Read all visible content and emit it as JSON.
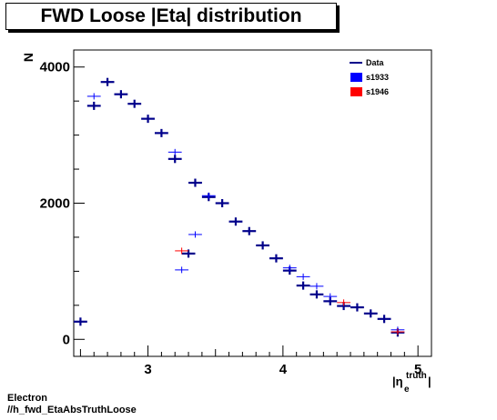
{
  "chart_data": {
    "type": "scatter",
    "title": "FWD Loose |Eta| distribution",
    "ylabel": "N",
    "xlabel_main": "|η",
    "xlabel_sup": "truth",
    "xlabel_sub": "e",
    "xlabel_close": "|",
    "xlim": [
      2.45,
      5.1
    ],
    "ylim": [
      -250,
      4250
    ],
    "xticks": [
      {
        "v": 3,
        "label": "3"
      },
      {
        "v": 4,
        "label": "4"
      },
      {
        "v": 5,
        "label": "5"
      }
    ],
    "yticks": [
      {
        "v": 0,
        "label": "0"
      },
      {
        "v": 2000,
        "label": "2000"
      },
      {
        "v": 4000,
        "label": "4000"
      }
    ],
    "legend": [
      {
        "name": "Data",
        "color": "#00008b",
        "kind": "line"
      },
      {
        "name": "s1933",
        "color": "#0000ff",
        "kind": "box"
      },
      {
        "name": "s1946",
        "color": "#ff0000",
        "kind": "box"
      }
    ],
    "series": [
      {
        "name": "Data",
        "color": "#00008b",
        "width": 2.2,
        "points": [
          [
            2.5,
            260,
            0.05
          ],
          [
            2.6,
            3430,
            0.05
          ],
          [
            2.7,
            3780,
            0.05
          ],
          [
            2.8,
            3600,
            0.05
          ],
          [
            2.9,
            3460,
            0.05
          ],
          [
            3.0,
            3240,
            0.05
          ],
          [
            3.1,
            3030,
            0.05
          ],
          [
            3.2,
            2650,
            0.05
          ],
          [
            3.3,
            1260,
            0.05
          ],
          [
            3.35,
            2300,
            0.05
          ],
          [
            3.45,
            2090,
            0.05
          ],
          [
            3.55,
            2000,
            0.05
          ],
          [
            3.65,
            1730,
            0.05
          ],
          [
            3.75,
            1590,
            0.05
          ],
          [
            3.85,
            1380,
            0.05
          ],
          [
            3.95,
            1190,
            0.05
          ],
          [
            4.05,
            1010,
            0.05
          ],
          [
            4.15,
            790,
            0.05
          ],
          [
            4.25,
            660,
            0.05
          ],
          [
            4.35,
            560,
            0.05
          ],
          [
            4.45,
            490,
            0.05
          ],
          [
            4.55,
            470,
            0.05
          ],
          [
            4.65,
            380,
            0.05
          ],
          [
            4.75,
            300,
            0.05
          ],
          [
            4.85,
            100,
            0.05
          ]
        ]
      },
      {
        "name": "s1933",
        "color": "#0000ff",
        "width": 1,
        "points": [
          [
            2.6,
            3570,
            0.05
          ],
          [
            3.2,
            2750,
            0.05
          ],
          [
            3.25,
            1020,
            0.05
          ],
          [
            3.35,
            1540,
            0.05
          ],
          [
            3.45,
            2110,
            0.05
          ],
          [
            4.05,
            1050,
            0.05
          ],
          [
            4.15,
            920,
            0.05
          ],
          [
            4.25,
            780,
            0.05
          ],
          [
            4.35,
            630,
            0.05
          ],
          [
            4.85,
            140,
            0.05
          ]
        ]
      },
      {
        "name": "s1946",
        "color": "#ff0000",
        "width": 1,
        "points": [
          [
            3.25,
            1300,
            0.05
          ],
          [
            4.45,
            540,
            0.05
          ],
          [
            4.85,
            110,
            0.05
          ]
        ]
      }
    ]
  },
  "footer": {
    "line1": "Electron",
    "line2": "//h_fwd_EtaAbsTruthLoose"
  }
}
